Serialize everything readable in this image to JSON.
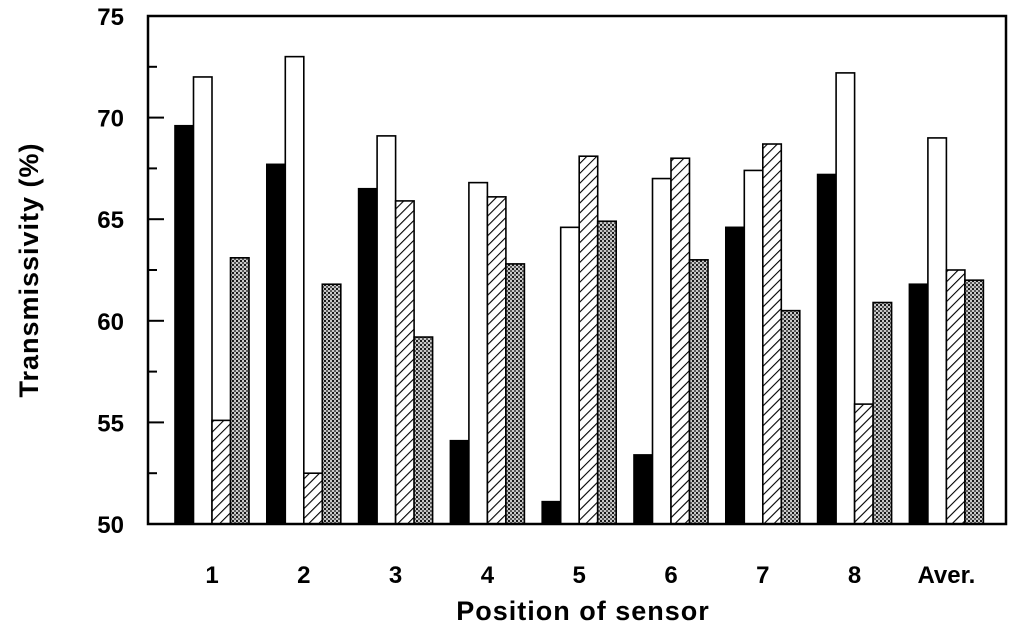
{
  "chart_data": {
    "type": "bar",
    "title": "",
    "xlabel": "Position of sensor",
    "ylabel": "Transmissivity (%)",
    "ylim": [
      50,
      75
    ],
    "yticks": [
      "50",
      "55",
      "60",
      "65",
      "70",
      "75"
    ],
    "categories": [
      "1",
      "2",
      "3",
      "4",
      "5",
      "6",
      "7",
      "8",
      "Aver."
    ],
    "series": [
      {
        "fill": "solid-black",
        "values": [
          69.6,
          67.7,
          66.5,
          54.1,
          51.1,
          53.4,
          64.6,
          67.2,
          61.8
        ]
      },
      {
        "fill": "white",
        "values": [
          72.0,
          73.0,
          69.1,
          66.8,
          64.6,
          67.0,
          67.4,
          72.2,
          69.0
        ]
      },
      {
        "fill": "diagonal-hatch",
        "values": [
          55.1,
          52.5,
          65.9,
          66.1,
          68.1,
          68.0,
          68.7,
          55.9,
          62.5
        ]
      },
      {
        "fill": "crosshatch-dots",
        "values": [
          63.1,
          61.8,
          59.2,
          62.8,
          64.9,
          63.0,
          60.5,
          60.9,
          62.0
        ]
      }
    ],
    "grid": false,
    "legend": "none"
  }
}
